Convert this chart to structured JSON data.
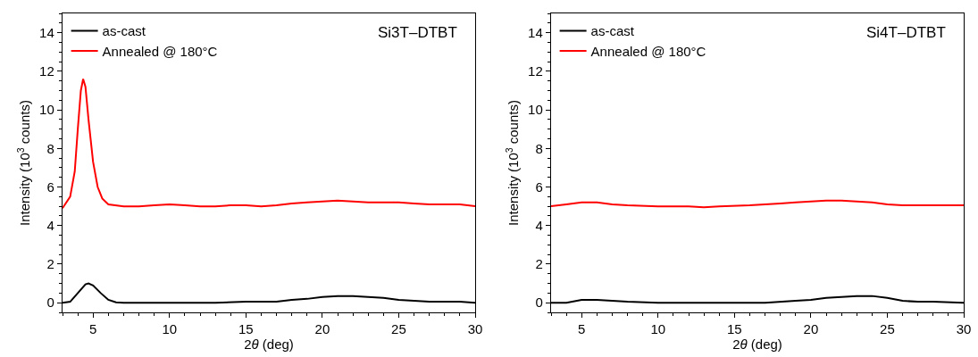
{
  "chart_data": [
    {
      "type": "line",
      "xlabel": "2θ (deg)",
      "ylabel": "Intensity (10$^{3}$ counts)",
      "annotations": [
        "Si3T–DTBT"
      ],
      "xlim": [
        3,
        30
      ],
      "ylim": [
        -0.5,
        15
      ],
      "xticks": [
        5,
        10,
        15,
        20,
        25,
        30
      ],
      "yticks": [
        0,
        2,
        4,
        6,
        8,
        10,
        12,
        14
      ],
      "grid": false,
      "legend": "top left",
      "marker": "none",
      "line_style": "solid",
      "series": [
        {
          "name": "as-cast",
          "color": "#000000",
          "x": [
            3,
            3.5,
            4,
            4.5,
            4.7,
            5,
            5.5,
            6,
            6.5,
            7,
            10,
            13,
            15,
            17,
            18,
            19,
            20,
            21,
            22,
            23,
            24,
            25,
            26,
            27,
            28,
            29,
            30
          ],
          "values": [
            0,
            0.05,
            0.5,
            0.95,
            1.0,
            0.9,
            0.5,
            0.15,
            0.02,
            0,
            0,
            0,
            0.05,
            0.05,
            0.15,
            0.2,
            0.3,
            0.35,
            0.35,
            0.3,
            0.25,
            0.15,
            0.1,
            0.05,
            0.05,
            0.05,
            0
          ]
        },
        {
          "name": "Annealed @ 180°C",
          "color": "#ff0000",
          "x": [
            3,
            3.5,
            3.8,
            4,
            4.2,
            4.35,
            4.5,
            4.7,
            5,
            5.3,
            5.6,
            6,
            7,
            8,
            9,
            10,
            11,
            12,
            13,
            14,
            15,
            16,
            17,
            18,
            19,
            20,
            21,
            22,
            23,
            24,
            25,
            26,
            27,
            28,
            29,
            30
          ],
          "values": [
            4.9,
            5.5,
            6.8,
            9,
            11,
            11.6,
            11.2,
            9.5,
            7.3,
            6.0,
            5.4,
            5.1,
            5.0,
            5.0,
            5.05,
            5.1,
            5.05,
            5.0,
            5.0,
            5.05,
            5.05,
            5.0,
            5.05,
            5.15,
            5.2,
            5.25,
            5.3,
            5.25,
            5.2,
            5.2,
            5.2,
            5.15,
            5.1,
            5.1,
            5.1,
            5.0
          ]
        }
      ]
    },
    {
      "type": "line",
      "xlabel": "2θ (deg)",
      "ylabel": "Intensity (10$^{3}$ counts)",
      "annotations": [
        "Si4T–DTBT"
      ],
      "xlim": [
        3,
        30
      ],
      "ylim": [
        -0.5,
        15
      ],
      "xticks": [
        5,
        10,
        15,
        20,
        25,
        30
      ],
      "yticks": [
        0,
        2,
        4,
        6,
        8,
        10,
        12,
        14
      ],
      "grid": false,
      "legend": "top left",
      "marker": "none",
      "line_style": "solid",
      "series": [
        {
          "name": "as-cast",
          "color": "#000000",
          "x": [
            3,
            4,
            5,
            6,
            7,
            8,
            10,
            13,
            15,
            17,
            19,
            20,
            21,
            22,
            23,
            24,
            25,
            26,
            27,
            28,
            30
          ],
          "values": [
            0,
            0,
            0.15,
            0.15,
            0.1,
            0.05,
            0,
            0,
            0,
            0,
            0.1,
            0.15,
            0.25,
            0.3,
            0.35,
            0.35,
            0.25,
            0.1,
            0.05,
            0.05,
            0
          ]
        },
        {
          "name": "Annealed @ 180°C",
          "color": "#ff0000",
          "x": [
            3,
            4,
            5,
            6,
            7,
            8,
            10,
            12,
            13,
            14,
            16,
            17,
            18,
            19,
            20,
            21,
            22,
            23,
            24,
            25,
            26,
            27,
            28,
            29,
            30
          ],
          "values": [
            5.0,
            5.1,
            5.2,
            5.2,
            5.1,
            5.05,
            5.0,
            5.0,
            4.95,
            5.0,
            5.05,
            5.1,
            5.15,
            5.2,
            5.25,
            5.3,
            5.3,
            5.25,
            5.2,
            5.1,
            5.05,
            5.05,
            5.05,
            5.05,
            5.05
          ]
        }
      ]
    }
  ]
}
